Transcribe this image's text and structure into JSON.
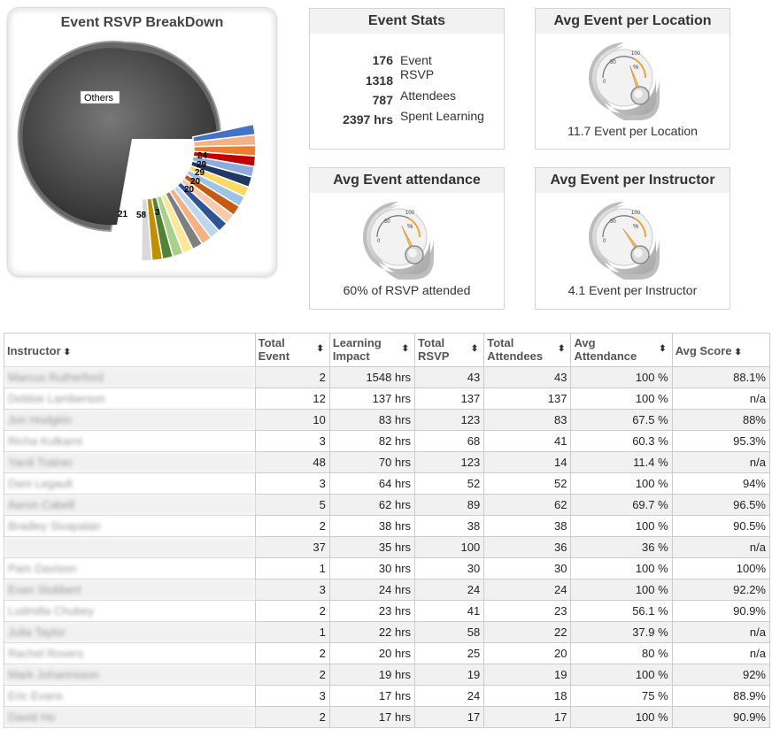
{
  "pie": {
    "title": "Event RSVP BreakDown",
    "others_label": "Others",
    "slice_labels": [
      "24",
      "29",
      "29",
      "20",
      "20",
      "21",
      "58",
      "3"
    ]
  },
  "stats": {
    "title": "Event Stats",
    "rows": [
      {
        "num": "176",
        "label": "Event"
      },
      {
        "num": "1318",
        "label": "RSVP"
      },
      {
        "num": "787",
        "label": "Attendees"
      },
      {
        "num": "2397 hrs",
        "label": "Spent Learning"
      }
    ]
  },
  "gauges": {
    "location": {
      "title": "Avg Event per Location",
      "caption": "11.7 Event per Location"
    },
    "attendance": {
      "title": "Avg Event attendance",
      "caption": "60% of RSVP attended"
    },
    "instructor": {
      "title": "Avg Event per Instructor",
      "caption": "4.1 Event per Instructor"
    },
    "ticks": [
      "0",
      "50",
      "100"
    ],
    "unit": "%"
  },
  "table": {
    "columns": [
      "Instructor",
      "Total Event",
      "Learning Impact",
      "Total RSVP",
      "Total Attendees",
      "Avg Attendance",
      "Avg Score"
    ],
    "rows": [
      [
        "Marcus Rutherford",
        "2",
        "1548 hrs",
        "43",
        "43",
        "100 %",
        "88.1%"
      ],
      [
        "Debbie Lamberson",
        "12",
        "137 hrs",
        "137",
        "137",
        "100 %",
        "n/a"
      ],
      [
        "Jon Hodgkin",
        "10",
        "83 hrs",
        "123",
        "83",
        "67.5 %",
        "88%"
      ],
      [
        "Richa Kulkarni",
        "3",
        "82 hrs",
        "68",
        "41",
        "60.3 %",
        "95.3%"
      ],
      [
        "Yardi Trainer",
        "48",
        "70 hrs",
        "123",
        "14",
        "11.4 %",
        "n/a"
      ],
      [
        "Dani Legault",
        "3",
        "64 hrs",
        "52",
        "52",
        "100 %",
        "94%"
      ],
      [
        "Aaron Cabell",
        "5",
        "62 hrs",
        "89",
        "62",
        "69.7 %",
        "96.5%"
      ],
      [
        "Bradley Sivapalan",
        "2",
        "38 hrs",
        "38",
        "38",
        "100 %",
        "90.5%"
      ],
      [
        "",
        "37",
        "35 hrs",
        "100",
        "36",
        "36 %",
        "n/a"
      ],
      [
        "Pam Davison",
        "1",
        "30 hrs",
        "30",
        "30",
        "100 %",
        "100%"
      ],
      [
        "Evan Stubbert",
        "3",
        "24 hrs",
        "24",
        "24",
        "100 %",
        "92.2%"
      ],
      [
        "Ludmilla Chubey",
        "2",
        "23 hrs",
        "41",
        "23",
        "56.1 %",
        "90.9%"
      ],
      [
        "Julia Taylor",
        "1",
        "22 hrs",
        "58",
        "22",
        "37.9 %",
        "n/a"
      ],
      [
        "Rachel Rovers",
        "2",
        "20 hrs",
        "25",
        "20",
        "80 %",
        "n/a"
      ],
      [
        "Mark Johannsson",
        "2",
        "19 hrs",
        "19",
        "19",
        "100 %",
        "92%"
      ],
      [
        "Eric Evans",
        "3",
        "17 hrs",
        "24",
        "18",
        "75 %",
        "88.9%"
      ],
      [
        "David Ho",
        "2",
        "17 hrs",
        "17",
        "17",
        "100 %",
        "90.9%"
      ]
    ]
  }
}
